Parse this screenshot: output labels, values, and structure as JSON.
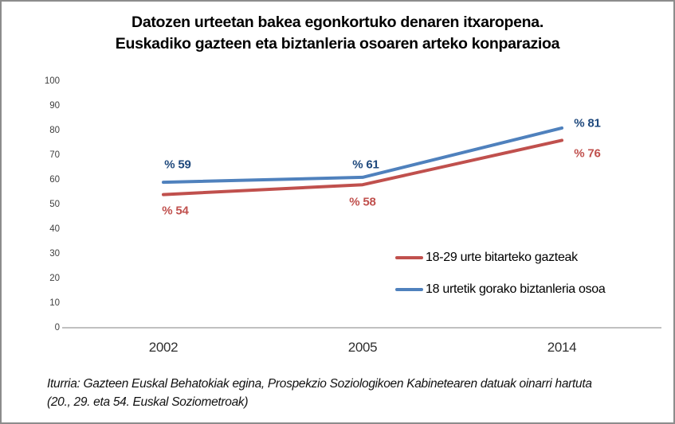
{
  "chart_data": {
    "type": "line",
    "title": "Datozen urteetan bakea egonkortuko denaren itxaropena. Euskadiko gazteen eta biztanleria osoaren arteko konparazioa",
    "title_lines": [
      "Datozen urteetan bakea egonkortuko denaren itxaropena.",
      "Euskadiko gazteen eta biztanleria osoaren arteko konparazioa"
    ],
    "categories": [
      "2002",
      "2005",
      "2014"
    ],
    "series": [
      {
        "name": "18-29 urte bitarteko gazteak",
        "color": "#c0504d",
        "label_color": "#c0504d",
        "values": [
          54,
          58,
          76
        ],
        "point_labels": [
          "% 54",
          "% 58",
          "% 76"
        ]
      },
      {
        "name": "18 urtetik gorako biztanleria osoa",
        "color": "#4f81bd",
        "label_color": "#1f497d",
        "values": [
          59,
          61,
          81
        ],
        "point_labels": [
          "% 59",
          "% 61",
          "% 81"
        ]
      }
    ],
    "xlabel": "",
    "ylabel": "",
    "ylim": [
      0,
      100
    ],
    "yticks": [
      0,
      10,
      20,
      30,
      40,
      50,
      60,
      70,
      80,
      90,
      100
    ],
    "grid": false,
    "legend_position": "center-right",
    "axis_color": "#9a9a9a"
  },
  "source": {
    "line1": "Iturria: Gazteen Euskal Behatokiak egina, Prospekzio Soziologikoen Kabinetearen datuak oinarri hartuta",
    "line2": "(20., 29. eta 54. Euskal Soziometroak)"
  }
}
